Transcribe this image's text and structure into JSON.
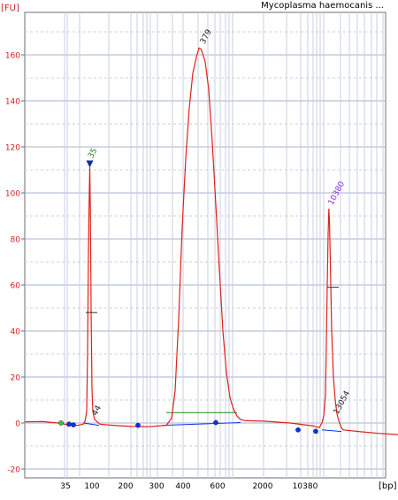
{
  "chart_data": {
    "type": "line",
    "title": "Mycoplasma haemocanis ...",
    "ylabel": "[FU]",
    "xlabel": "[bp]",
    "ylim": [
      -22,
      172
    ],
    "y_ticks": [
      -20,
      0,
      20,
      40,
      60,
      80,
      100,
      120,
      140,
      160
    ],
    "x_ticks": [
      "35",
      "100",
      "200",
      "300",
      "400",
      "600",
      "2000",
      "10380"
    ],
    "grid": true,
    "series": [
      {
        "color": "#e0201a",
        "points": [
          [
            0,
            0.5
          ],
          [
            20,
            0.6
          ],
          [
            38,
            0.0
          ],
          [
            45,
            -0.5
          ],
          [
            50,
            -1.0
          ],
          [
            60,
            -1.0
          ],
          [
            66,
            -0.5
          ],
          [
            68,
            0.5
          ],
          [
            70,
            5
          ],
          [
            71,
            30
          ],
          [
            72,
            75
          ],
          [
            72.8,
            96
          ],
          [
            73.5,
            111
          ],
          [
            74.2,
            92
          ],
          [
            75,
            50
          ],
          [
            76,
            15
          ],
          [
            77,
            5
          ],
          [
            79,
            1.5
          ],
          [
            85,
            -0.5
          ],
          [
            100,
            -1.0
          ],
          [
            120,
            -1.5
          ],
          [
            140,
            -1.6
          ],
          [
            160,
            -1.0
          ],
          [
            166,
            2
          ],
          [
            170,
            14
          ],
          [
            174,
            45
          ],
          [
            178,
            85
          ],
          [
            182,
            115
          ],
          [
            186,
            137
          ],
          [
            190,
            152
          ],
          [
            194,
            159
          ],
          [
            197,
            163
          ],
          [
            199.5,
            162.5
          ],
          [
            204,
            157
          ],
          [
            208,
            145
          ],
          [
            212,
            122
          ],
          [
            216,
            95
          ],
          [
            220,
            67
          ],
          [
            224,
            40
          ],
          [
            228,
            22
          ],
          [
            232,
            11
          ],
          [
            236,
            6
          ],
          [
            240,
            3
          ],
          [
            244,
            1.5
          ],
          [
            250,
            1.0
          ],
          [
            270,
            0.8
          ],
          [
            300,
            0.0
          ],
          [
            325,
            -1.2
          ],
          [
            333,
            -2.0
          ],
          [
            336,
            0
          ],
          [
            338,
            3
          ],
          [
            340,
            12
          ],
          [
            341,
            35
          ],
          [
            342,
            60
          ],
          [
            343,
            82
          ],
          [
            343.8,
            93
          ],
          [
            344.5,
            88
          ],
          [
            345.5,
            70
          ],
          [
            347,
            40
          ],
          [
            349,
            20
          ],
          [
            351,
            10
          ],
          [
            353,
            4
          ],
          [
            355,
            1
          ],
          [
            358,
            -2
          ],
          [
            360,
            -3
          ],
          [
            380,
            -3.8
          ],
          [
            400,
            -4.5
          ],
          [
            420,
            -5.0
          ],
          [
            435,
            -5.5
          ]
        ]
      }
    ],
    "annotations": [
      {
        "label": "35",
        "bp": 35,
        "x": 73.5,
        "y": 111,
        "color": "#1a8a1a"
      },
      {
        "label": "44",
        "bp": 44,
        "x": 79,
        "y": 1.5,
        "color": "#222222"
      },
      {
        "label": "379",
        "bp": 379,
        "x": 199,
        "y": 163,
        "color": "#222222"
      },
      {
        "label": "10380",
        "bp": 10380,
        "x": 344,
        "y": 93,
        "color": "#8a2be2"
      },
      {
        "label": "13054",
        "bp": 13054,
        "x": 354,
        "y": 2,
        "color": "#222222"
      }
    ],
    "baselines": [
      {
        "from": [
          66,
          0.0
        ],
        "to": [
          84,
          -1.0
        ],
        "color": "#1030e0"
      },
      {
        "from": [
          156,
          -1.0
        ],
        "to": [
          244,
          0.2
        ],
        "color": "#1030e0"
      },
      {
        "from": [
          336,
          -3.0
        ],
        "to": [
          358,
          -3.7
        ],
        "color": "#1030e0"
      },
      {
        "from": [
          160,
          4.5
        ],
        "to": [
          240,
          4.5
        ],
        "color": "#1a8a1a"
      }
    ],
    "peak_marks": [
      {
        "x": 73,
        "y": 48
      },
      {
        "x": 346,
        "y": 59
      }
    ],
    "colors": {
      "trace": "#e0201a",
      "baseline": "#1030e0",
      "marker_blue": "#1030e0",
      "marker_green": "#30d030",
      "grid_major": "#a9b3cf",
      "grid_minor": "#c9cfe0"
    }
  }
}
